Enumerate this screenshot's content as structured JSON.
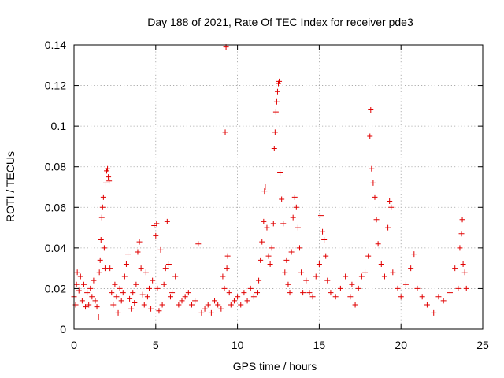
{
  "chart_data": {
    "type": "scatter",
    "title": "Day 188 of 2021, Rate Of TEC Index for receiver pde3",
    "xlabel": "GPS time / hours",
    "ylabel": "ROTI / TECUs",
    "xlim": [
      0,
      25
    ],
    "ylim": [
      0,
      0.14
    ],
    "xticks": [
      0,
      5,
      10,
      15,
      20,
      25
    ],
    "xtick_labels": [
      "0",
      "5",
      "10",
      "15",
      "20",
      "25"
    ],
    "yticks": [
      0,
      0.02,
      0.04,
      0.06,
      0.08,
      0.1,
      0.12,
      0.14
    ],
    "ytick_labels": [
      "0",
      "0.02",
      "0.04",
      "0.06",
      "0.08",
      "0.1",
      "0.12",
      "0.14"
    ],
    "grid": true,
    "marker": "+",
    "color": "#e00000",
    "series": [
      {
        "name": "ROTI",
        "points": [
          [
            0.0,
            0.016
          ],
          [
            0.1,
            0.012
          ],
          [
            0.15,
            0.022
          ],
          [
            0.2,
            0.028
          ],
          [
            0.3,
            0.019
          ],
          [
            0.4,
            0.026
          ],
          [
            0.5,
            0.014
          ],
          [
            0.6,
            0.022
          ],
          [
            0.7,
            0.011
          ],
          [
            0.8,
            0.018
          ],
          [
            0.9,
            0.012
          ],
          [
            1.0,
            0.02
          ],
          [
            1.1,
            0.016
          ],
          [
            1.2,
            0.024
          ],
          [
            1.3,
            0.014
          ],
          [
            1.4,
            0.011
          ],
          [
            1.5,
            0.006
          ],
          [
            1.55,
            0.028
          ],
          [
            1.6,
            0.034
          ],
          [
            1.65,
            0.044
          ],
          [
            1.7,
            0.055
          ],
          [
            1.75,
            0.06
          ],
          [
            1.8,
            0.065
          ],
          [
            1.85,
            0.04
          ],
          [
            1.9,
            0.03
          ],
          [
            1.95,
            0.072
          ],
          [
            2.0,
            0.078
          ],
          [
            2.05,
            0.079
          ],
          [
            2.1,
            0.075
          ],
          [
            2.15,
            0.073
          ],
          [
            2.2,
            0.03
          ],
          [
            2.3,
            0.018
          ],
          [
            2.4,
            0.012
          ],
          [
            2.5,
            0.022
          ],
          [
            2.6,
            0.016
          ],
          [
            2.7,
            0.008
          ],
          [
            2.8,
            0.02
          ],
          [
            2.9,
            0.014
          ],
          [
            3.0,
            0.018
          ],
          [
            3.1,
            0.026
          ],
          [
            3.2,
            0.032
          ],
          [
            3.3,
            0.037
          ],
          [
            3.4,
            0.015
          ],
          [
            3.5,
            0.01
          ],
          [
            3.6,
            0.018
          ],
          [
            3.7,
            0.013
          ],
          [
            3.8,
            0.022
          ],
          [
            3.9,
            0.038
          ],
          [
            4.0,
            0.043
          ],
          [
            4.1,
            0.03
          ],
          [
            4.2,
            0.017
          ],
          [
            4.3,
            0.012
          ],
          [
            4.4,
            0.028
          ],
          [
            4.5,
            0.016
          ],
          [
            4.6,
            0.02
          ],
          [
            4.7,
            0.01
          ],
          [
            4.8,
            0.024
          ],
          [
            4.9,
            0.051
          ],
          [
            5.0,
            0.046
          ],
          [
            5.05,
            0.052
          ],
          [
            5.1,
            0.02
          ],
          [
            5.2,
            0.009
          ],
          [
            5.3,
            0.039
          ],
          [
            5.4,
            0.012
          ],
          [
            5.5,
            0.022
          ],
          [
            5.6,
            0.03
          ],
          [
            5.7,
            0.053
          ],
          [
            5.8,
            0.032
          ],
          [
            5.9,
            0.016
          ],
          [
            6.0,
            0.018
          ],
          [
            6.2,
            0.026
          ],
          [
            6.4,
            0.012
          ],
          [
            6.6,
            0.014
          ],
          [
            6.8,
            0.016
          ],
          [
            7.0,
            0.018
          ],
          [
            7.2,
            0.012
          ],
          [
            7.4,
            0.014
          ],
          [
            7.6,
            0.042
          ],
          [
            7.8,
            0.008
          ],
          [
            8.0,
            0.01
          ],
          [
            8.2,
            0.012
          ],
          [
            8.4,
            0.008
          ],
          [
            8.6,
            0.014
          ],
          [
            8.8,
            0.012
          ],
          [
            9.0,
            0.01
          ],
          [
            9.1,
            0.026
          ],
          [
            9.2,
            0.02
          ],
          [
            9.25,
            0.097
          ],
          [
            9.3,
            0.139
          ],
          [
            9.35,
            0.03
          ],
          [
            9.4,
            0.036
          ],
          [
            9.5,
            0.018
          ],
          [
            9.6,
            0.012
          ],
          [
            9.8,
            0.014
          ],
          [
            10.0,
            0.016
          ],
          [
            10.2,
            0.012
          ],
          [
            10.4,
            0.018
          ],
          [
            10.6,
            0.014
          ],
          [
            10.8,
            0.02
          ],
          [
            11.0,
            0.016
          ],
          [
            11.2,
            0.018
          ],
          [
            11.3,
            0.024
          ],
          [
            11.4,
            0.034
          ],
          [
            11.5,
            0.043
          ],
          [
            11.6,
            0.053
          ],
          [
            11.65,
            0.068
          ],
          [
            11.7,
            0.07
          ],
          [
            11.8,
            0.05
          ],
          [
            11.9,
            0.036
          ],
          [
            12.0,
            0.032
          ],
          [
            12.1,
            0.04
          ],
          [
            12.2,
            0.052
          ],
          [
            12.25,
            0.089
          ],
          [
            12.3,
            0.097
          ],
          [
            12.35,
            0.107
          ],
          [
            12.4,
            0.112
          ],
          [
            12.45,
            0.117
          ],
          [
            12.5,
            0.121
          ],
          [
            12.55,
            0.122
          ],
          [
            12.6,
            0.077
          ],
          [
            12.7,
            0.064
          ],
          [
            12.8,
            0.052
          ],
          [
            12.9,
            0.028
          ],
          [
            13.0,
            0.034
          ],
          [
            13.1,
            0.022
          ],
          [
            13.2,
            0.018
          ],
          [
            13.3,
            0.038
          ],
          [
            13.4,
            0.055
          ],
          [
            13.5,
            0.065
          ],
          [
            13.6,
            0.06
          ],
          [
            13.7,
            0.05
          ],
          [
            13.8,
            0.04
          ],
          [
            13.9,
            0.028
          ],
          [
            14.0,
            0.018
          ],
          [
            14.2,
            0.024
          ],
          [
            14.4,
            0.018
          ],
          [
            14.6,
            0.016
          ],
          [
            14.8,
            0.026
          ],
          [
            15.0,
            0.032
          ],
          [
            15.1,
            0.056
          ],
          [
            15.2,
            0.048
          ],
          [
            15.3,
            0.044
          ],
          [
            15.4,
            0.036
          ],
          [
            15.5,
            0.024
          ],
          [
            15.7,
            0.018
          ],
          [
            16.0,
            0.016
          ],
          [
            16.3,
            0.02
          ],
          [
            16.6,
            0.026
          ],
          [
            16.9,
            0.016
          ],
          [
            17.0,
            0.022
          ],
          [
            17.2,
            0.012
          ],
          [
            17.4,
            0.02
          ],
          [
            17.6,
            0.026
          ],
          [
            17.8,
            0.028
          ],
          [
            18.0,
            0.036
          ],
          [
            18.1,
            0.095
          ],
          [
            18.15,
            0.108
          ],
          [
            18.2,
            0.079
          ],
          [
            18.3,
            0.072
          ],
          [
            18.4,
            0.065
          ],
          [
            18.5,
            0.054
          ],
          [
            18.6,
            0.042
          ],
          [
            18.8,
            0.032
          ],
          [
            19.0,
            0.026
          ],
          [
            19.2,
            0.05
          ],
          [
            19.3,
            0.063
          ],
          [
            19.4,
            0.06
          ],
          [
            19.5,
            0.028
          ],
          [
            19.8,
            0.02
          ],
          [
            20.0,
            0.016
          ],
          [
            20.3,
            0.022
          ],
          [
            20.6,
            0.03
          ],
          [
            20.8,
            0.037
          ],
          [
            21.0,
            0.02
          ],
          [
            21.3,
            0.016
          ],
          [
            21.6,
            0.012
          ],
          [
            22.0,
            0.008
          ],
          [
            22.3,
            0.016
          ],
          [
            22.6,
            0.014
          ],
          [
            23.0,
            0.018
          ],
          [
            23.3,
            0.03
          ],
          [
            23.5,
            0.02
          ],
          [
            23.6,
            0.04
          ],
          [
            23.7,
            0.047
          ],
          [
            23.75,
            0.054
          ],
          [
            23.8,
            0.032
          ],
          [
            23.9,
            0.028
          ],
          [
            24.0,
            0.02
          ]
        ]
      }
    ]
  }
}
